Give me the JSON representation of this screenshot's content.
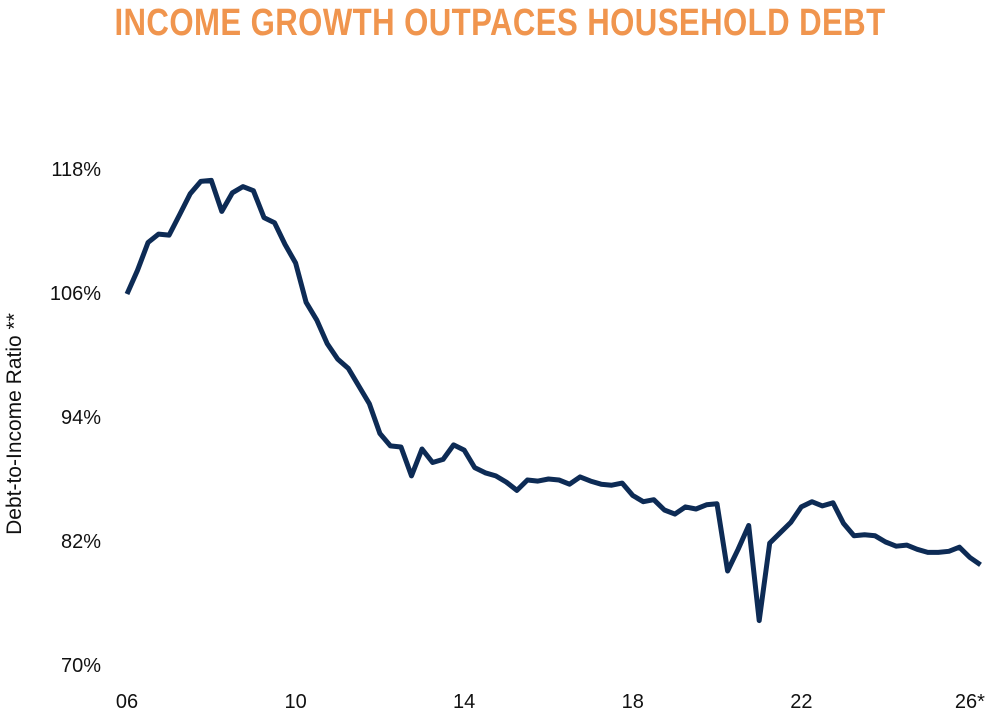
{
  "chart_data": {
    "type": "line",
    "title": "INCOME GROWTH OUTPACES HOUSEHOLD DEBT",
    "xlabel": "",
    "ylabel": "Debt-to-Income Ratio **",
    "x_ticks": [
      {
        "value": 2006,
        "label": "06"
      },
      {
        "value": 2010,
        "label": "10"
      },
      {
        "value": 2014,
        "label": "14"
      },
      {
        "value": 2018,
        "label": "18"
      },
      {
        "value": 2022,
        "label": "22"
      },
      {
        "value": 2026,
        "label": "26*"
      }
    ],
    "y_ticks": [
      {
        "value": 70,
        "label": "70%"
      },
      {
        "value": 82,
        "label": "82%"
      },
      {
        "value": 94,
        "label": "94%"
      },
      {
        "value": 106,
        "label": "106%"
      },
      {
        "value": 118,
        "label": "118%"
      }
    ],
    "xlim": [
      2006,
      2026.5
    ],
    "ylim": [
      70,
      118
    ],
    "grid": false,
    "legend": "none",
    "series": [
      {
        "color": "#0d2b55",
        "points": [
          [
            2006.0,
            105.9
          ],
          [
            2006.25,
            108.2
          ],
          [
            2006.5,
            110.9
          ],
          [
            2006.75,
            111.7
          ],
          [
            2007.0,
            111.6
          ],
          [
            2007.25,
            113.6
          ],
          [
            2007.5,
            115.6
          ],
          [
            2007.75,
            116.8
          ],
          [
            2008.0,
            116.9
          ],
          [
            2008.25,
            113.9
          ],
          [
            2008.5,
            115.7
          ],
          [
            2008.75,
            116.3
          ],
          [
            2009.0,
            115.9
          ],
          [
            2009.25,
            113.3
          ],
          [
            2009.5,
            112.8
          ],
          [
            2009.75,
            110.7
          ],
          [
            2010.0,
            108.9
          ],
          [
            2010.25,
            105.1
          ],
          [
            2010.5,
            103.4
          ],
          [
            2010.75,
            101.1
          ],
          [
            2011.0,
            99.6
          ],
          [
            2011.25,
            98.7
          ],
          [
            2011.5,
            97.0
          ],
          [
            2011.75,
            95.3
          ],
          [
            2012.0,
            92.4
          ],
          [
            2012.25,
            91.2
          ],
          [
            2012.5,
            91.1
          ],
          [
            2012.75,
            88.3
          ],
          [
            2013.0,
            90.9
          ],
          [
            2013.25,
            89.6
          ],
          [
            2013.5,
            89.9
          ],
          [
            2013.75,
            91.3
          ],
          [
            2014.0,
            90.8
          ],
          [
            2014.25,
            89.1
          ],
          [
            2014.5,
            88.6
          ],
          [
            2014.75,
            88.3
          ],
          [
            2015.0,
            87.7
          ],
          [
            2015.25,
            86.9
          ],
          [
            2015.5,
            87.9
          ],
          [
            2015.75,
            87.8
          ],
          [
            2016.0,
            88.0
          ],
          [
            2016.25,
            87.9
          ],
          [
            2016.5,
            87.5
          ],
          [
            2016.75,
            88.2
          ],
          [
            2017.0,
            87.8
          ],
          [
            2017.25,
            87.5
          ],
          [
            2017.5,
            87.4
          ],
          [
            2017.75,
            87.6
          ],
          [
            2018.0,
            86.4
          ],
          [
            2018.25,
            85.8
          ],
          [
            2018.5,
            86.0
          ],
          [
            2018.75,
            85.0
          ],
          [
            2019.0,
            84.6
          ],
          [
            2019.25,
            85.3
          ],
          [
            2019.5,
            85.1
          ],
          [
            2019.75,
            85.5
          ],
          [
            2020.0,
            85.6
          ],
          [
            2020.25,
            79.1
          ],
          [
            2020.5,
            81.2
          ],
          [
            2020.75,
            83.5
          ],
          [
            2021.0,
            74.3
          ],
          [
            2021.25,
            81.8
          ],
          [
            2021.5,
            82.8
          ],
          [
            2021.75,
            83.8
          ],
          [
            2022.0,
            85.3
          ],
          [
            2022.25,
            85.8
          ],
          [
            2022.5,
            85.4
          ],
          [
            2022.75,
            85.7
          ],
          [
            2023.0,
            83.7
          ],
          [
            2023.25,
            82.5
          ],
          [
            2023.5,
            82.6
          ],
          [
            2023.75,
            82.5
          ],
          [
            2024.0,
            81.9
          ],
          [
            2024.25,
            81.5
          ],
          [
            2024.5,
            81.6
          ],
          [
            2024.75,
            81.2
          ],
          [
            2025.0,
            80.9
          ],
          [
            2025.25,
            80.9
          ],
          [
            2025.5,
            81.0
          ],
          [
            2025.75,
            81.4
          ],
          [
            2026.0,
            80.4
          ],
          [
            2026.25,
            79.7
          ]
        ]
      }
    ],
    "colors": {
      "title": "#f0954e",
      "line": "#0d2b55",
      "text": "#111111"
    }
  }
}
